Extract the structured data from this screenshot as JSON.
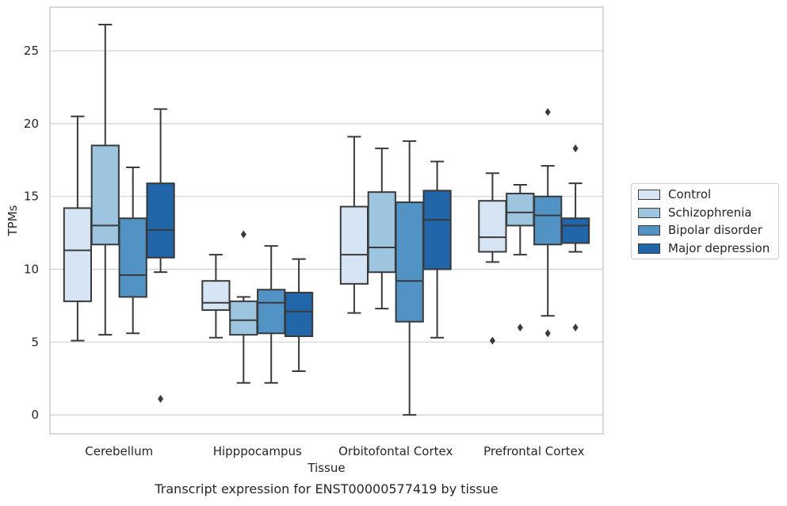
{
  "chart_data": {
    "type": "box",
    "title": "Transcript expression for ENST00000577419 by tissue",
    "xlabel": "Tissue",
    "ylabel": "TPMs",
    "ylim": [
      -1.3,
      28
    ],
    "yticks": [
      0,
      5,
      10,
      15,
      20,
      25
    ],
    "grid": "horizontal",
    "legend_position": "right",
    "categories": [
      "Cerebellum",
      "Hipppocampus",
      "Orbitofontal Cortex",
      "Prefrontal Cortex"
    ],
    "series": [
      {
        "name": "Control",
        "color": "#d6e5f4",
        "boxes": [
          {
            "whisker_low": 5.1,
            "q1": 7.8,
            "median": 11.3,
            "q3": 14.2,
            "whisker_high": 20.5,
            "outliers": []
          },
          {
            "whisker_low": 5.3,
            "q1": 7.2,
            "median": 7.7,
            "q3": 9.2,
            "whisker_high": 11.0,
            "outliers": []
          },
          {
            "whisker_low": 7.0,
            "q1": 9.0,
            "median": 11.0,
            "q3": 14.3,
            "whisker_high": 19.1,
            "outliers": []
          },
          {
            "whisker_low": 10.5,
            "q1": 11.2,
            "median": 12.2,
            "q3": 14.7,
            "whisker_high": 16.6,
            "outliers": [
              5.1
            ]
          }
        ]
      },
      {
        "name": "Schizophrenia",
        "color": "#9dc5e0",
        "boxes": [
          {
            "whisker_low": 5.5,
            "q1": 11.7,
            "median": 13.0,
            "q3": 18.5,
            "whisker_high": 26.8,
            "outliers": []
          },
          {
            "whisker_low": 2.2,
            "q1": 5.5,
            "median": 6.5,
            "q3": 7.8,
            "whisker_high": 8.1,
            "outliers": [
              12.4
            ]
          },
          {
            "whisker_low": 7.3,
            "q1": 9.8,
            "median": 11.5,
            "q3": 15.3,
            "whisker_high": 18.3,
            "outliers": []
          },
          {
            "whisker_low": 11.0,
            "q1": 13.0,
            "median": 13.9,
            "q3": 15.2,
            "whisker_high": 15.8,
            "outliers": [
              6.0
            ]
          }
        ]
      },
      {
        "name": "Bipolar disorder",
        "color": "#5093c4",
        "boxes": [
          {
            "whisker_low": 5.6,
            "q1": 8.1,
            "median": 9.6,
            "q3": 13.5,
            "whisker_high": 17.0,
            "outliers": []
          },
          {
            "whisker_low": 2.2,
            "q1": 5.6,
            "median": 7.7,
            "q3": 8.6,
            "whisker_high": 11.6,
            "outliers": []
          },
          {
            "whisker_low": 0.0,
            "q1": 6.4,
            "median": 9.2,
            "q3": 14.6,
            "whisker_high": 18.8,
            "outliers": []
          },
          {
            "whisker_low": 6.8,
            "q1": 11.7,
            "median": 13.7,
            "q3": 15.0,
            "whisker_high": 17.1,
            "outliers": [
              5.6,
              20.8
            ]
          }
        ]
      },
      {
        "name": "Major depression",
        "color": "#2066a9",
        "boxes": [
          {
            "whisker_low": 9.8,
            "q1": 10.8,
            "median": 12.7,
            "q3": 15.9,
            "whisker_high": 21.0,
            "outliers": [
              1.1
            ]
          },
          {
            "whisker_low": 3.0,
            "q1": 5.4,
            "median": 7.1,
            "q3": 8.4,
            "whisker_high": 10.7,
            "outliers": []
          },
          {
            "whisker_low": 5.3,
            "q1": 10.0,
            "median": 13.4,
            "q3": 15.4,
            "whisker_high": 17.4,
            "outliers": []
          },
          {
            "whisker_low": 11.2,
            "q1": 11.8,
            "median": 13.0,
            "q3": 13.5,
            "whisker_high": 15.9,
            "outliers": [
              6.0,
              18.3
            ]
          }
        ]
      }
    ]
  }
}
